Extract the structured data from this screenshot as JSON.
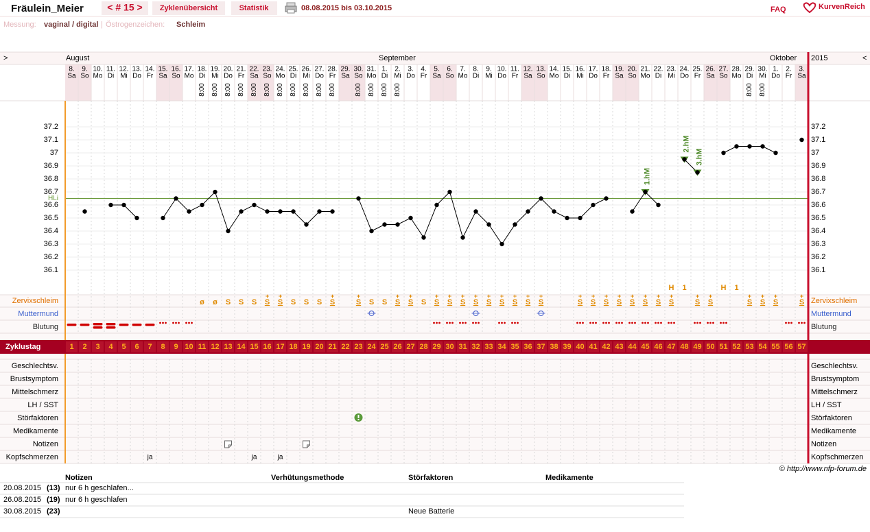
{
  "header": {
    "title": "Fräulein_Meier",
    "cycle_nav": "< # 15 >",
    "nav": [
      "Zyklenübersicht",
      "Statistik"
    ],
    "date_range": "08.08.2015 bis 03.10.2015",
    "faq": "FAQ",
    "brand": "KurvenReich"
  },
  "settings": {
    "measure_label": "Messung:",
    "measure": "vaginal / digital",
    "separator": "|",
    "estrogen_label": "Östrogenzeichen:",
    "estrogen": "Schleim"
  },
  "chart": {
    "nav_prev": ">",
    "nav_next": "<",
    "year": "2015",
    "months": [
      {
        "label": "August",
        "day": 1
      },
      {
        "label": "September",
        "day": 25
      },
      {
        "label": "Oktober",
        "day": 55
      }
    ],
    "dates": [
      "8.",
      "9.",
      "10.",
      "11.",
      "12.",
      "13.",
      "14.",
      "15.",
      "16.",
      "17.",
      "18.",
      "19.",
      "20.",
      "21.",
      "22.",
      "23.",
      "24.",
      "25.",
      "26.",
      "27.",
      "28.",
      "29.",
      "30.",
      "31.",
      "1.",
      "2.",
      "3.",
      "4.",
      "5.",
      "6.",
      "7.",
      "8.",
      "9.",
      "10.",
      "11.",
      "12.",
      "13.",
      "14.",
      "15.",
      "16.",
      "17.",
      "18.",
      "19.",
      "20.",
      "21.",
      "22.",
      "23.",
      "24.",
      "25.",
      "26.",
      "27.",
      "28.",
      "29.",
      "30.",
      "1.",
      "2.",
      "3."
    ],
    "weekdays": [
      "Sa",
      "So",
      "Mo",
      "Di",
      "Mi",
      "Do",
      "Fr",
      "Sa",
      "So",
      "Mo",
      "Di",
      "Mi",
      "Do",
      "Fr",
      "Sa",
      "So",
      "Mo",
      "Di",
      "Mi",
      "Do",
      "Fr",
      "Sa",
      "So",
      "Mo",
      "Di",
      "Mi",
      "Do",
      "Fr",
      "Sa",
      "So",
      "Mo",
      "Di",
      "Mi",
      "Do",
      "Fr",
      "Sa",
      "So",
      "Mo",
      "Di",
      "Mi",
      "Do",
      "Fr",
      "Sa",
      "So",
      "Mo",
      "Di",
      "Mi",
      "Do",
      "Fr",
      "Sa",
      "So",
      "Mo",
      "Di",
      "Mi",
      "Do",
      "Fr",
      "Sa"
    ],
    "times": [
      null,
      null,
      null,
      null,
      null,
      null,
      null,
      null,
      null,
      null,
      "8:00",
      "8:00",
      "8:00",
      "8:00",
      "8:00",
      "8:00",
      "8:00",
      "8:00",
      "8:00",
      "8:00",
      "8:00",
      null,
      "8:00",
      "8:00",
      "8:00",
      "8:00",
      null,
      null,
      null,
      null,
      null,
      null,
      null,
      null,
      null,
      null,
      null,
      null,
      null,
      null,
      null,
      null,
      null,
      null,
      null,
      null,
      null,
      null,
      null,
      null,
      null,
      null,
      "8:00",
      "8:00",
      null,
      null,
      null
    ],
    "ylim": [
      35.9,
      37.4
    ],
    "yticks": [
      36.1,
      36.2,
      36.3,
      36.4,
      36.5,
      36.6,
      36.7,
      36.8,
      36.9,
      37,
      37.1,
      37.2
    ],
    "cover_line": {
      "label": "HLi",
      "value": 36.65
    },
    "temperature": [
      null,
      36.55,
      null,
      36.6,
      36.6,
      36.5,
      null,
      36.5,
      36.65,
      36.55,
      36.6,
      36.7,
      36.4,
      36.55,
      36.6,
      36.55,
      36.55,
      36.55,
      36.45,
      36.55,
      36.55,
      null,
      36.65,
      36.4,
      36.45,
      36.45,
      36.5,
      36.35,
      36.6,
      36.7,
      36.35,
      36.55,
      36.45,
      36.3,
      36.45,
      36.55,
      36.65,
      36.55,
      36.5,
      36.5,
      36.6,
      36.65,
      null,
      36.55,
      36.7,
      36.6,
      null,
      36.95,
      36.85,
      null,
      37.0,
      37.05,
      37.05,
      37.05,
      37.0,
      null,
      37.1
    ],
    "hm": [
      {
        "label": "1.hM",
        "day": 45
      },
      {
        "label": "2.hM",
        "day": 48
      },
      {
        "label": "3.hM",
        "day": 49
      }
    ],
    "peaks": [
      {
        "label": "H",
        "day": 47
      },
      {
        "label": "1",
        "day": 48
      },
      {
        "label": "H",
        "day": 51
      },
      {
        "label": "1",
        "day": 52
      }
    ],
    "row_labels": {
      "zervix": "Zervixschleim",
      "muttermund": "Muttermund",
      "blutung": "Blutung",
      "zyklustag": "Zyklustag"
    },
    "zervix": [
      null,
      null,
      null,
      null,
      null,
      null,
      null,
      null,
      null,
      null,
      "ø",
      "ø",
      "S",
      "S",
      "S",
      "S+",
      "S+",
      "S",
      "S",
      "S",
      "S+",
      null,
      "S+",
      "S",
      "S",
      "S+",
      "S+",
      "S",
      "S+",
      "S+",
      "S+",
      "S+",
      "S+",
      "S+",
      "S+",
      "S+",
      "S+",
      null,
      null,
      "S+",
      "S+",
      "S+",
      "S+",
      "S+",
      "S+",
      "S+",
      "S+",
      null,
      "S+",
      "S+",
      null,
      null,
      "S+",
      "S+",
      "S+",
      null,
      "S+"
    ],
    "muttermund_days": [
      24,
      32,
      37
    ],
    "blutung": [
      2,
      2,
      3,
      3,
      2,
      2,
      2,
      1,
      1,
      1,
      null,
      null,
      null,
      null,
      null,
      null,
      null,
      null,
      null,
      null,
      null,
      null,
      null,
      null,
      null,
      null,
      null,
      null,
      1,
      1,
      1,
      1,
      null,
      1,
      1,
      null,
      null,
      null,
      null,
      1,
      1,
      1,
      1,
      1,
      1,
      1,
      1,
      null,
      1,
      1,
      1,
      null,
      null,
      null,
      null,
      1,
      1
    ],
    "cycle_days": [
      1,
      2,
      3,
      4,
      5,
      6,
      7,
      8,
      9,
      10,
      11,
      12,
      13,
      14,
      15,
      16,
      17,
      18,
      19,
      20,
      21,
      22,
      23,
      24,
      25,
      26,
      27,
      28,
      29,
      30,
      31,
      32,
      33,
      34,
      35,
      36,
      37,
      38,
      39,
      40,
      41,
      42,
      43,
      44,
      45,
      46,
      47,
      48,
      49,
      50,
      51,
      52,
      53,
      54,
      55,
      56,
      57
    ],
    "symptom_rows": [
      "Geschlechtsv.",
      "Brustsymptom",
      "Mittelschmerz",
      "LH / SST",
      "Störfaktoren",
      "Medikamente",
      "Notizen",
      "Kopfschmerzen"
    ],
    "stoerfaktoren_days": [
      23
    ],
    "notizen_days": [
      13,
      19
    ],
    "kopfschmerzen": [
      {
        "day": 7,
        "text": "ja"
      },
      {
        "day": 15,
        "text": "ja"
      },
      {
        "day": 17,
        "text": "ja"
      }
    ]
  },
  "copyright": "© http://www.nfp-forum.de",
  "table": {
    "headers": [
      "Notizen",
      "Verhütungsmethode",
      "Störfaktoren",
      "Medikamente"
    ],
    "rows": [
      {
        "date": "20.08.2015",
        "day": "(13)",
        "notiz": "nur 6 h geschlafen..."
      },
      {
        "date": "26.08.2015",
        "day": "(19)",
        "notiz": "nur 6 h geschlafen"
      },
      {
        "date": "30.08.2015",
        "day": "(23)",
        "stoerfaktor": "Neue Batterie"
      }
    ]
  }
}
